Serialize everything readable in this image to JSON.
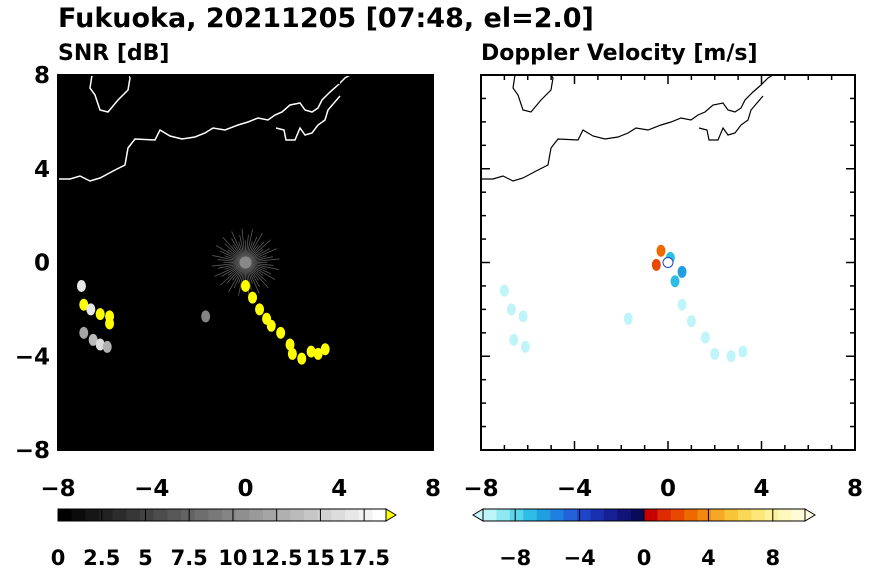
{
  "figure": {
    "title": "Fukuoka, 20211205 [07:48, el=2.0]"
  },
  "chart_data": [
    {
      "type": "heatmap",
      "title": "SNR [dB]",
      "xlim": [
        -8,
        8
      ],
      "ylim": [
        -8,
        8
      ],
      "xticks": [
        "−8",
        "−4",
        "0",
        "4",
        "8"
      ],
      "yticks": [
        "8",
        "4",
        "0",
        "−4",
        "−8"
      ],
      "background_color": "#000000",
      "coastline_color": "#ffffff",
      "colorbar": {
        "min": 0,
        "max": 18.75,
        "ticks": [
          "0",
          "2.5",
          "5",
          "7.5",
          "10",
          "12.5",
          "15",
          "17.5"
        ],
        "extend": "max",
        "colors": [
          "#000000",
          "#0b0b0b",
          "#161616",
          "#212121",
          "#2c2c2c",
          "#373737",
          "#424242",
          "#4d4d4d",
          "#585858",
          "#636363",
          "#6e6e6e",
          "#797979",
          "#848484",
          "#8f8f8f",
          "#9a9a9a",
          "#a5a5a5",
          "#b0b0b0",
          "#bbbbbb",
          "#c6c6c6",
          "#d1d1d1",
          "#dcdcdc",
          "#e7e7e7",
          "#f2f2f2",
          "#ffffff"
        ],
        "extend_color": "#ffff00"
      },
      "echoes": [
        {
          "x": -7.0,
          "y": -1.0,
          "value": 17
        },
        {
          "x": -6.9,
          "y": -1.8,
          "value": 19
        },
        {
          "x": -6.6,
          "y": -2.0,
          "value": 17
        },
        {
          "x": -6.2,
          "y": -2.2,
          "value": 19
        },
        {
          "x": -5.8,
          "y": -2.3,
          "value": 19
        },
        {
          "x": -5.8,
          "y": -2.6,
          "value": 19
        },
        {
          "x": -6.9,
          "y": -3.0,
          "value": 12
        },
        {
          "x": -6.5,
          "y": -3.3,
          "value": 14
        },
        {
          "x": -6.2,
          "y": -3.5,
          "value": 16
        },
        {
          "x": -5.9,
          "y": -3.6,
          "value": 13
        },
        {
          "x": -1.7,
          "y": -2.3,
          "value": 10
        },
        {
          "x": 0.0,
          "y": -1.0,
          "value": 19
        },
        {
          "x": 0.3,
          "y": -1.5,
          "value": 19
        },
        {
          "x": 0.6,
          "y": -2.0,
          "value": 19
        },
        {
          "x": 0.9,
          "y": -2.4,
          "value": 19
        },
        {
          "x": 1.1,
          "y": -2.7,
          "value": 19
        },
        {
          "x": 1.5,
          "y": -3.0,
          "value": 19
        },
        {
          "x": 1.9,
          "y": -3.5,
          "value": 19
        },
        {
          "x": 2.0,
          "y": -3.9,
          "value": 19
        },
        {
          "x": 2.4,
          "y": -4.1,
          "value": 19
        },
        {
          "x": 2.8,
          "y": -3.8,
          "value": 19
        },
        {
          "x": 3.1,
          "y": -3.9,
          "value": 19
        },
        {
          "x": 3.4,
          "y": -3.7,
          "value": 19
        }
      ]
    },
    {
      "type": "heatmap",
      "title": "Doppler Velocity [m/s]",
      "xlim": [
        -8,
        8
      ],
      "ylim": [
        -8,
        8
      ],
      "xticks": [
        "−8",
        "−4",
        "0",
        "4",
        "8"
      ],
      "background_color": "#ffffff",
      "coastline_color": "#000000",
      "colorbar": {
        "min": -10,
        "max": 10,
        "ticks": [
          "−8",
          "−4",
          "0",
          "4",
          "8"
        ],
        "extend": "both",
        "colors": [
          "#bff5f8",
          "#8ee8f2",
          "#5ad6ec",
          "#2dbde6",
          "#1f9ee0",
          "#2080e0",
          "#2462da",
          "#1f46c8",
          "#1a30b0",
          "#152095",
          "#101478",
          "#0a0a5a",
          "#c80000",
          "#e02a00",
          "#e84800",
          "#ee6a00",
          "#f28a10",
          "#f5a823",
          "#f8c43a",
          "#fad858",
          "#fce778",
          "#fdf19a",
          "#fef8bc",
          "#fffcd8"
        ],
        "extend_low_color": "#c8f8fb",
        "extend_high_color": "#fffde6"
      },
      "echoes": [
        {
          "x": -7.0,
          "y": -1.2,
          "value": -9.5
        },
        {
          "x": -6.7,
          "y": -2.0,
          "value": -9.5
        },
        {
          "x": -6.2,
          "y": -2.3,
          "value": -9.5
        },
        {
          "x": -6.6,
          "y": -3.3,
          "value": -9.5
        },
        {
          "x": -6.1,
          "y": -3.6,
          "value": -9.5
        },
        {
          "x": -1.7,
          "y": -2.4,
          "value": -9.5
        },
        {
          "x": 0.6,
          "y": -0.4,
          "value": -6
        },
        {
          "x": 0.3,
          "y": -0.8,
          "value": -7
        },
        {
          "x": 0.1,
          "y": 0.2,
          "value": -7
        },
        {
          "x": -0.3,
          "y": 0.5,
          "value": 3
        },
        {
          "x": -0.5,
          "y": -0.1,
          "value": 2
        },
        {
          "x": 0.6,
          "y": -1.8,
          "value": -9.5
        },
        {
          "x": 1.0,
          "y": -2.5,
          "value": -9.5
        },
        {
          "x": 1.6,
          "y": -3.2,
          "value": -9.5
        },
        {
          "x": 2.0,
          "y": -3.9,
          "value": -9.5
        },
        {
          "x": 2.7,
          "y": -4.0,
          "value": -9.5
        },
        {
          "x": 3.2,
          "y": -3.8,
          "value": -9.5
        }
      ]
    }
  ]
}
